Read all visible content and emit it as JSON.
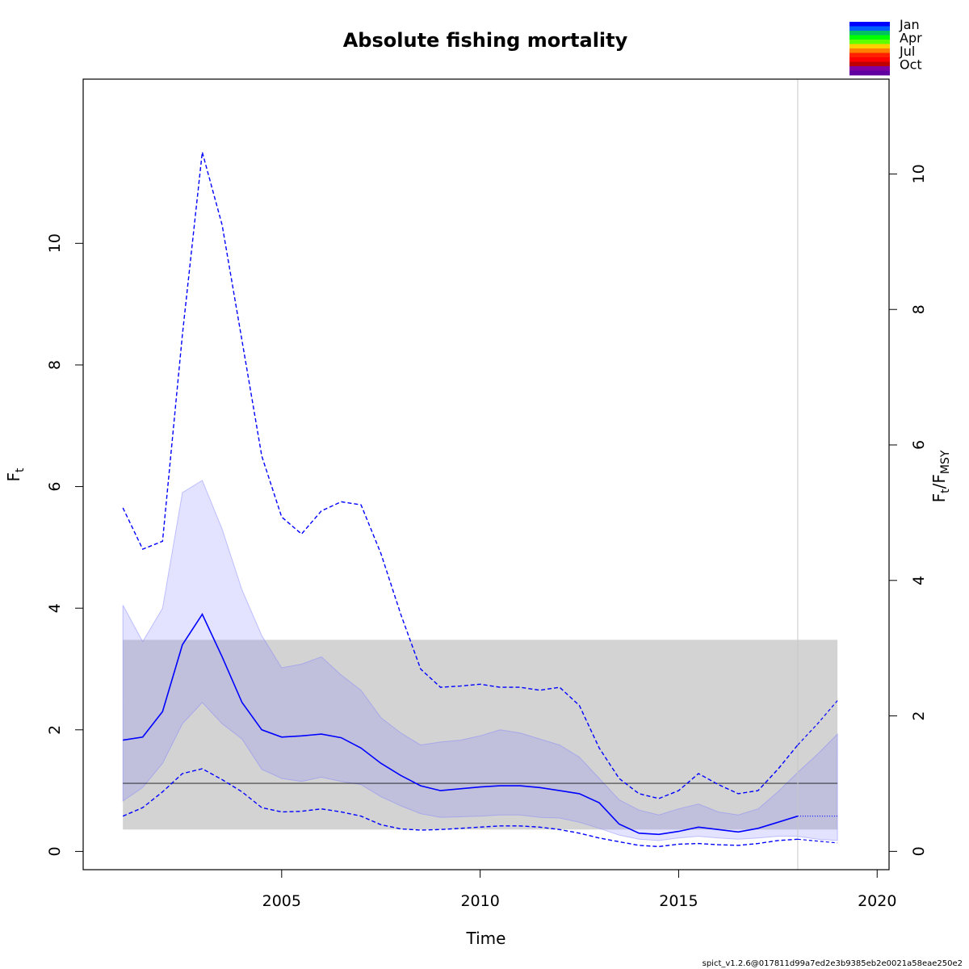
{
  "chart_data": {
    "type": "line",
    "title": "Absolute fishing mortality",
    "xlabel": "Time",
    "ylabel_main": "F",
    "ylabel_sub": "t",
    "y2label_main": "F",
    "y2label_sub1": "t",
    "y2label_sep": "/F",
    "y2label_sub2": "MSY",
    "footer": "spict_v1.2.6@017811d99a7ed2e3b9385eb2e0021a58eae250e2",
    "xlim": [
      2000.0,
      2020.3
    ],
    "ylim": [
      -0.3,
      12.7
    ],
    "y2lim": [
      -0.27,
      11.4
    ],
    "x_ticks": [
      2005,
      2010,
      2015,
      2020
    ],
    "x_tick_labels": [
      "2005",
      "2010",
      "2015",
      "2020"
    ],
    "y_ticks": [
      0,
      2,
      4,
      6,
      8,
      10
    ],
    "y_tick_labels": [
      "0",
      "2",
      "4",
      "6",
      "8",
      "10"
    ],
    "y2_ticks": [
      0,
      2,
      4,
      6,
      8,
      10
    ],
    "y2_tick_labels": [
      "0",
      "2",
      "4",
      "6",
      "8",
      "10"
    ],
    "grid": false,
    "legend": {
      "placement": "top-right",
      "labels": [
        "Jan",
        "Apr",
        "Jul",
        "Oct"
      ]
    },
    "colors": {
      "estimate": "#0000ff",
      "ci_band": "#8080ff",
      "msy_band": "#d3d3d3",
      "fmsy_line": "#000000",
      "vline": "#c8c8c8",
      "season_colors": [
        "#0000ff",
        "#0060ff",
        "#00c060",
        "#00ff00",
        "#60ff00",
        "#ffd000",
        "#ff8000",
        "#ff2000",
        "#ff0000",
        "#c00000",
        "#8000a0",
        "#6000a0"
      ]
    },
    "fmsy": 1.12,
    "fmsy_band": {
      "x": [
        2001.0,
        2019.0
      ],
      "lower": 0.36,
      "upper": 3.48
    },
    "vline_x": 2018.0,
    "series": [
      {
        "role": "estimate",
        "x": [
          2001.0,
          2001.5,
          2002.0,
          2002.5,
          2003.0,
          2003.5,
          2004.0,
          2004.5,
          2005.0,
          2005.5,
          2006.0,
          2006.5,
          2007.0,
          2007.5,
          2008.0,
          2008.5,
          2009.0,
          2009.5,
          2010.0,
          2010.5,
          2011.0,
          2011.5,
          2012.0,
          2012.5,
          2013.0,
          2013.5,
          2014.0,
          2014.5,
          2015.0,
          2015.5,
          2016.0,
          2016.5,
          2017.0,
          2017.5,
          2018.0
        ],
        "y": [
          1.83,
          1.88,
          2.3,
          3.4,
          3.9,
          3.2,
          2.45,
          2.0,
          1.88,
          1.9,
          1.93,
          1.87,
          1.7,
          1.45,
          1.25,
          1.08,
          1.0,
          1.03,
          1.06,
          1.08,
          1.08,
          1.05,
          1.0,
          0.95,
          0.8,
          0.45,
          0.3,
          0.28,
          0.33,
          0.4,
          0.36,
          0.32,
          0.38,
          0.48,
          0.58
        ]
      },
      {
        "role": "ci_upper",
        "x": [
          2001.0,
          2001.5,
          2002.0,
          2002.5,
          2003.0,
          2003.5,
          2004.0,
          2004.5,
          2005.0,
          2005.5,
          2006.0,
          2006.5,
          2007.0,
          2007.5,
          2008.0,
          2008.5,
          2009.0,
          2009.5,
          2010.0,
          2010.5,
          2011.0,
          2011.5,
          2012.0,
          2012.5,
          2013.0,
          2013.5,
          2014.0,
          2014.5,
          2015.0,
          2015.5,
          2016.0,
          2016.5,
          2017.0,
          2017.5,
          2018.0
        ],
        "y": [
          5.65,
          4.97,
          5.1,
          8.5,
          11.5,
          10.3,
          8.4,
          6.5,
          5.5,
          5.22,
          5.6,
          5.75,
          5.7,
          4.9,
          3.9,
          3.0,
          2.7,
          2.72,
          2.75,
          2.7,
          2.7,
          2.65,
          2.7,
          2.4,
          1.7,
          1.2,
          0.95,
          0.87,
          1.0,
          1.28,
          1.1,
          0.95,
          1.0,
          1.35,
          1.75
        ]
      },
      {
        "role": "ci_lower",
        "x": [
          2001.0,
          2001.5,
          2002.0,
          2002.5,
          2003.0,
          2003.5,
          2004.0,
          2004.5,
          2005.0,
          2005.5,
          2006.0,
          2006.5,
          2007.0,
          2007.5,
          2008.0,
          2008.5,
          2009.0,
          2009.5,
          2010.0,
          2010.5,
          2011.0,
          2011.5,
          2012.0,
          2012.5,
          2013.0,
          2013.5,
          2014.0,
          2014.5,
          2015.0,
          2015.5,
          2016.0,
          2016.5,
          2017.0,
          2017.5,
          2018.0
        ],
        "y": [
          0.58,
          0.72,
          0.98,
          1.28,
          1.36,
          1.18,
          0.98,
          0.72,
          0.65,
          0.66,
          0.7,
          0.65,
          0.58,
          0.44,
          0.37,
          0.35,
          0.36,
          0.38,
          0.4,
          0.42,
          0.42,
          0.4,
          0.36,
          0.3,
          0.22,
          0.16,
          0.1,
          0.08,
          0.12,
          0.13,
          0.11,
          0.1,
          0.13,
          0.18,
          0.2
        ]
      },
      {
        "role": "band_upper",
        "x": [
          2001.0,
          2001.5,
          2002.0,
          2002.5,
          2003.0,
          2003.5,
          2004.0,
          2004.5,
          2005.0,
          2005.5,
          2006.0,
          2006.5,
          2007.0,
          2007.5,
          2008.0,
          2008.5,
          2009.0,
          2009.5,
          2010.0,
          2010.5,
          2011.0,
          2011.5,
          2012.0,
          2012.5,
          2013.0,
          2013.5,
          2014.0,
          2014.5,
          2015.0,
          2015.5,
          2016.0,
          2016.5,
          2017.0,
          2017.5,
          2018.0,
          2018.5,
          2019.0
        ],
        "y": [
          4.05,
          3.45,
          4.0,
          5.9,
          6.1,
          5.3,
          4.3,
          3.55,
          3.02,
          3.08,
          3.2,
          2.9,
          2.65,
          2.2,
          1.95,
          1.75,
          1.8,
          1.83,
          1.9,
          2.0,
          1.95,
          1.85,
          1.75,
          1.55,
          1.2,
          0.85,
          0.68,
          0.6,
          0.7,
          0.78,
          0.65,
          0.6,
          0.7,
          0.98,
          1.3,
          1.6,
          1.93
        ]
      },
      {
        "role": "band_lower",
        "x": [
          2001.0,
          2001.5,
          2002.0,
          2002.5,
          2003.0,
          2003.5,
          2004.0,
          2004.5,
          2005.0,
          2005.5,
          2006.0,
          2006.5,
          2007.0,
          2007.5,
          2008.0,
          2008.5,
          2009.0,
          2009.5,
          2010.0,
          2010.5,
          2011.0,
          2011.5,
          2012.0,
          2012.5,
          2013.0,
          2013.5,
          2014.0,
          2014.5,
          2015.0,
          2015.5,
          2016.0,
          2016.5,
          2017.0,
          2017.5,
          2018.0,
          2018.5,
          2019.0
        ],
        "y": [
          0.83,
          1.05,
          1.45,
          2.1,
          2.45,
          2.1,
          1.85,
          1.35,
          1.2,
          1.15,
          1.22,
          1.15,
          1.1,
          0.9,
          0.75,
          0.62,
          0.56,
          0.57,
          0.58,
          0.6,
          0.6,
          0.56,
          0.55,
          0.48,
          0.38,
          0.27,
          0.2,
          0.18,
          0.22,
          0.25,
          0.22,
          0.2,
          0.22,
          0.25,
          0.25,
          0.2,
          0.18
        ]
      },
      {
        "role": "forecast",
        "x": [
          2018.0,
          2019.0
        ],
        "y": [
          0.58,
          0.58
        ]
      },
      {
        "role": "forecast_ci_upper",
        "x": [
          2018.0,
          2018.5,
          2019.0
        ],
        "y": [
          1.75,
          2.1,
          2.48
        ]
      },
      {
        "role": "forecast_ci_lower",
        "x": [
          2018.0,
          2018.5,
          2019.0
        ],
        "y": [
          0.2,
          0.17,
          0.14
        ]
      }
    ]
  }
}
